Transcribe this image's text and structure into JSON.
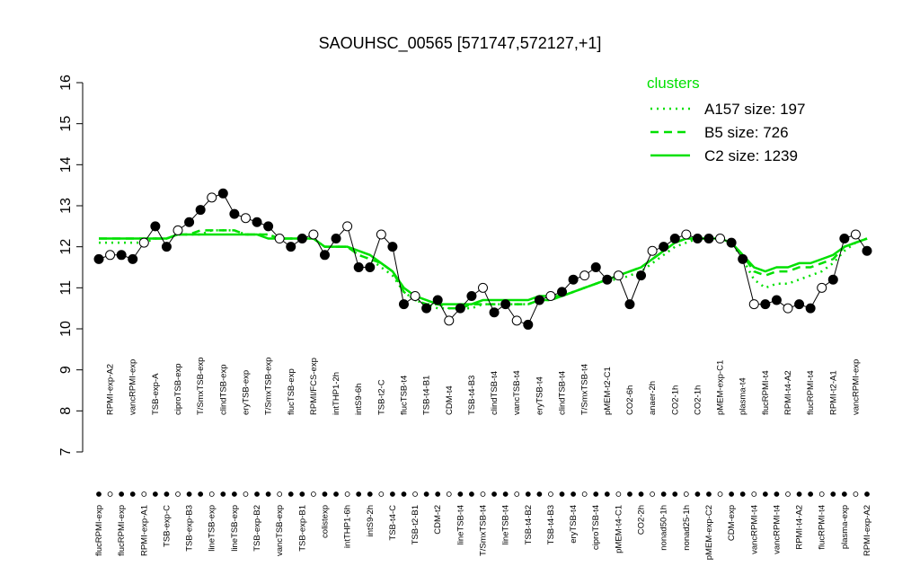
{
  "chart_data": {
    "type": "line",
    "title": "SAOUHSC_00565 [571747,572127,+1]",
    "categories": [
      "flucRPMI-exp",
      "RPMI-exp-A2",
      "flucRPMI-exp",
      "vancRPMI-exp",
      "RPMI-exp-A1",
      "TSB-exp-A",
      "TSB-exp-C",
      "ciproTSB-exp",
      "TSB-exp-B3",
      "T/SmxTSB-exp",
      "lineTSB-exp",
      "clindTSB-exp",
      "lineTSB-exp",
      "eryTSB-exp",
      "TSB-exp-B2",
      "T/SmxTSB-exp",
      "vancTSB-exp",
      "flucTSB-exp",
      "TSB-exp-B1",
      "RPMI/FCS-exp",
      "colistexp",
      "intTHP1-2h",
      "intTHP1-6h",
      "intS9-6h",
      "intS9-2h",
      "TSB-t2-C",
      "TSB-t4-C",
      "flucTSB-t4",
      "TSB-t2-B1",
      "TSB-t4-B1",
      "CDM-t2",
      "CDM-t4",
      "lineTSB-t4",
      "TSB-t4-B3",
      "T/SmxTSB-t4",
      "clindTSB-t4",
      "lineTSB-t4",
      "vancTSB-t4",
      "TSB-t4-B2",
      "eryTSB-t4",
      "TSB-t4-B3",
      "clindTSB-t4",
      "eryTSB-t4",
      "T/SmxTSB-t4",
      "ciproTSB-t4",
      "pMEM-t2-C1",
      "pMEM-t4-C1",
      "CO2-6h",
      "CO2-2h",
      "anaer-2h",
      "nonad50-1h",
      "CO2-1h",
      "nonad25-1h",
      "CO2-1h",
      "pMEM-exp-C2",
      "pMEM-exp-C1",
      "CDM-exp",
      "plasma-t4",
      "vancRPMI-t4",
      "flucRPMI-t4",
      "vancRPMI-t4",
      "RPMI-t4-A2",
      "RPMI-t4-A2",
      "flucRPMI-t4",
      "flucRPMI-t4",
      "RPMI-t2-A1",
      "plasma-exp",
      "vancRPMI-exp",
      "RPMI-exp-A2"
    ],
    "values": [
      11.7,
      11.8,
      11.8,
      11.7,
      12.1,
      12.5,
      12.0,
      12.4,
      12.6,
      12.9,
      13.2,
      13.3,
      12.8,
      12.7,
      12.6,
      12.5,
      12.2,
      12.0,
      12.2,
      12.3,
      11.8,
      12.2,
      12.5,
      11.5,
      11.5,
      12.3,
      12.0,
      10.6,
      10.8,
      10.5,
      10.7,
      10.2,
      10.5,
      10.8,
      11.0,
      10.4,
      10.6,
      10.2,
      10.1,
      10.7,
      10.8,
      10.9,
      11.2,
      11.3,
      11.5,
      11.2,
      11.3,
      10.6,
      11.3,
      11.9,
      12.0,
      12.2,
      12.3,
      12.2,
      12.2,
      12.2,
      12.1,
      11.7,
      10.6,
      10.6,
      10.7,
      10.5,
      10.6,
      10.5,
      11.0,
      11.2,
      12.2,
      12.3,
      11.9
    ],
    "legend_title": "clusters",
    "series": [
      {
        "name": "A157 size: 197",
        "color": "#00e000",
        "style": "dotted",
        "values": [
          12.1,
          12.1,
          12.1,
          12.1,
          12.1,
          12.2,
          12.2,
          12.3,
          12.3,
          12.3,
          12.4,
          12.4,
          12.4,
          12.3,
          12.3,
          12.3,
          12.2,
          12.2,
          12.2,
          12.2,
          12.0,
          12.0,
          12.0,
          11.8,
          11.7,
          11.5,
          11.3,
          10.9,
          10.7,
          10.6,
          10.5,
          10.5,
          10.5,
          10.5,
          10.6,
          10.6,
          10.6,
          10.6,
          10.6,
          10.7,
          10.7,
          10.8,
          10.9,
          11.0,
          11.1,
          11.2,
          11.2,
          11.3,
          11.4,
          11.6,
          11.8,
          12.0,
          12.1,
          12.2,
          12.2,
          12.2,
          12.1,
          11.7,
          11.2,
          11.0,
          11.1,
          11.1,
          11.2,
          11.3,
          11.4,
          11.6,
          11.9,
          12.1,
          12.2
        ]
      },
      {
        "name": "B5 size: 726",
        "color": "#00e000",
        "style": "dashed",
        "values": [
          12.2,
          12.2,
          12.2,
          12.2,
          12.2,
          12.2,
          12.2,
          12.3,
          12.3,
          12.4,
          12.4,
          12.4,
          12.4,
          12.3,
          12.3,
          12.3,
          12.2,
          12.2,
          12.2,
          12.2,
          12.0,
          12.0,
          12.0,
          11.8,
          11.7,
          11.6,
          11.4,
          10.9,
          10.7,
          10.6,
          10.6,
          10.5,
          10.5,
          10.6,
          10.6,
          10.6,
          10.6,
          10.6,
          10.6,
          10.7,
          10.7,
          10.8,
          10.9,
          11.0,
          11.1,
          11.2,
          11.3,
          11.4,
          11.5,
          11.7,
          11.9,
          12.1,
          12.2,
          12.2,
          12.2,
          12.2,
          12.1,
          11.8,
          11.4,
          11.3,
          11.4,
          11.4,
          11.5,
          11.5,
          11.6,
          11.7,
          12.0,
          12.1,
          12.2
        ]
      },
      {
        "name": "C2 size: 1239",
        "color": "#00e000",
        "style": "solid",
        "values": [
          12.2,
          12.2,
          12.2,
          12.2,
          12.2,
          12.2,
          12.2,
          12.3,
          12.3,
          12.3,
          12.3,
          12.3,
          12.3,
          12.3,
          12.3,
          12.2,
          12.2,
          12.2,
          12.2,
          12.2,
          12.0,
          12.0,
          12.0,
          11.9,
          11.8,
          11.6,
          11.4,
          11.0,
          10.8,
          10.7,
          10.6,
          10.6,
          10.6,
          10.6,
          10.7,
          10.7,
          10.7,
          10.7,
          10.7,
          10.8,
          10.8,
          10.8,
          10.9,
          11.0,
          11.1,
          11.2,
          11.3,
          11.4,
          11.5,
          11.7,
          11.9,
          12.1,
          12.2,
          12.2,
          12.2,
          12.2,
          12.1,
          11.8,
          11.5,
          11.4,
          11.5,
          11.5,
          11.6,
          11.6,
          11.7,
          11.8,
          12.0,
          12.1,
          12.2
        ]
      }
    ],
    "ylim": [
      7,
      16
    ],
    "yticks": [
      7,
      8,
      9,
      10,
      11,
      12,
      13,
      14,
      15,
      16
    ],
    "grid": false,
    "legend_position": "top-right"
  }
}
